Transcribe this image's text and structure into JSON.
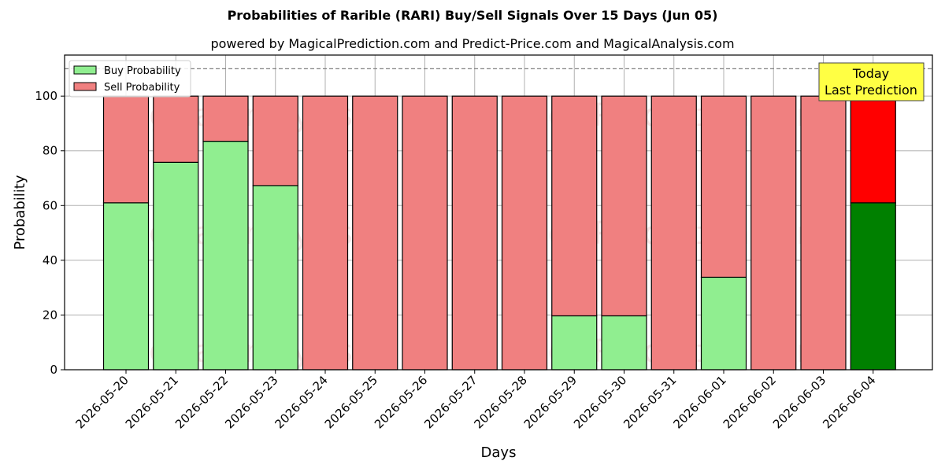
{
  "title": "Probabilities of Rarible (RARI) Buy/Sell Signals Over 15 Days (Jun 05)",
  "subtitle": "powered by MagicalPrediction.com and Predict-Price.com and MagicalAnalysis.com",
  "watermarks": [
    "MagicalAnalysis.com",
    "MagicalPrediction.com"
  ],
  "today_box": {
    "line1": "Today",
    "line2": "Last Prediction",
    "color": "#ffff44"
  },
  "colors": {
    "buy": "#90ee90",
    "sell": "#f08080",
    "buy_today": "#008000",
    "sell_today": "#ff0000"
  },
  "chart_data": {
    "type": "bar",
    "stacked": true,
    "xlabel": "Days",
    "ylabel": "Probability",
    "ylim": [
      0,
      115
    ],
    "yticks": [
      0,
      20,
      40,
      60,
      80,
      100
    ],
    "reference_line": 110,
    "grid": true,
    "legend": "top-left",
    "categories": [
      "2026-05-20",
      "2026-05-21",
      "2026-05-22",
      "2026-05-23",
      "2026-05-24",
      "2026-05-25",
      "2026-05-26",
      "2026-05-27",
      "2026-05-28",
      "2026-05-29",
      "2026-05-30",
      "2026-05-31",
      "2026-06-01",
      "2026-06-02",
      "2026-06-03",
      "2026-06-04"
    ],
    "series": [
      {
        "name": "Buy Probability",
        "values": [
          61,
          75.8,
          83.5,
          67.3,
          0,
          0,
          0,
          0,
          0,
          19.7,
          19.7,
          0,
          33.8,
          0,
          0,
          61
        ]
      },
      {
        "name": "Sell Probability",
        "values": [
          39,
          24.2,
          16.5,
          32.7,
          100,
          100,
          100,
          100,
          100,
          80.3,
          80.3,
          100,
          66.2,
          100,
          100,
          39
        ]
      }
    ]
  }
}
